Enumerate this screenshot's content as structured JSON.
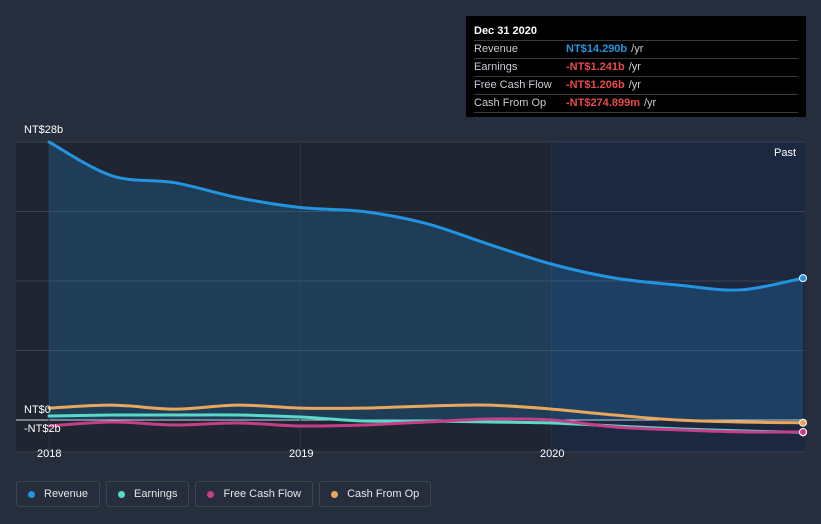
{
  "chart_data": {
    "type": "line",
    "title": "",
    "currency_unit": "NT$ billion",
    "x": [
      2018.0,
      2018.25,
      2018.5,
      2018.75,
      2019.0,
      2019.25,
      2019.5,
      2019.75,
      2020.0,
      2020.25,
      2020.5,
      2020.75,
      2021.0
    ],
    "ylim": [
      -2,
      28
    ],
    "y_ticks": [
      {
        "label": "NT$28b",
        "value": 28
      },
      {
        "label": "NT$0",
        "value": 0
      },
      {
        "label": "-NT$2b",
        "value": -2
      }
    ],
    "x_ticks": [
      {
        "label": "2018",
        "value": 2018
      },
      {
        "label": "2019",
        "value": 2019
      },
      {
        "label": "2020",
        "value": 2020
      }
    ],
    "past_label": "Past",
    "series": [
      {
        "name": "Revenue",
        "color": "#2394df",
        "values": [
          28.0,
          24.6,
          23.9,
          22.4,
          21.4,
          21.0,
          19.8,
          17.7,
          15.7,
          14.3,
          13.6,
          13.1,
          14.29
        ]
      },
      {
        "name": "Earnings",
        "color": "#5ad8c8",
        "values": [
          0.4,
          0.5,
          0.5,
          0.5,
          0.3,
          -0.1,
          -0.1,
          -0.2,
          -0.3,
          -0.6,
          -0.9,
          -1.1,
          -1.241
        ]
      },
      {
        "name": "Free Cash Flow",
        "color": "#c43f85",
        "values": [
          -0.6,
          -0.2,
          -0.5,
          -0.3,
          -0.6,
          -0.5,
          -0.2,
          0.1,
          0.0,
          -0.7,
          -1.0,
          -1.2,
          -1.206
        ]
      },
      {
        "name": "Cash From Op",
        "color": "#e8a75c",
        "values": [
          1.2,
          1.5,
          1.1,
          1.5,
          1.2,
          1.2,
          1.4,
          1.5,
          1.1,
          0.5,
          0.0,
          -0.2,
          -0.275
        ]
      }
    ]
  },
  "tooltip": {
    "date": "Dec 31 2020",
    "rows": [
      {
        "label": "Revenue",
        "value": "NT$14.290b",
        "unit": "/yr",
        "color": "#2394df"
      },
      {
        "label": "Earnings",
        "value": "-NT$1.241b",
        "unit": "/yr",
        "color": "#e84a4a"
      },
      {
        "label": "Free Cash Flow",
        "value": "-NT$1.206b",
        "unit": "/yr",
        "color": "#e84a4a"
      },
      {
        "label": "Cash From Op",
        "value": "-NT$274.899m",
        "unit": "/yr",
        "color": "#e84a4a"
      }
    ]
  },
  "legend": [
    {
      "label": "Revenue",
      "color": "#2394df"
    },
    {
      "label": "Earnings",
      "color": "#5ad8c8"
    },
    {
      "label": "Free Cash Flow",
      "color": "#c43f85"
    },
    {
      "label": "Cash From Op",
      "color": "#e8a75c"
    }
  ]
}
